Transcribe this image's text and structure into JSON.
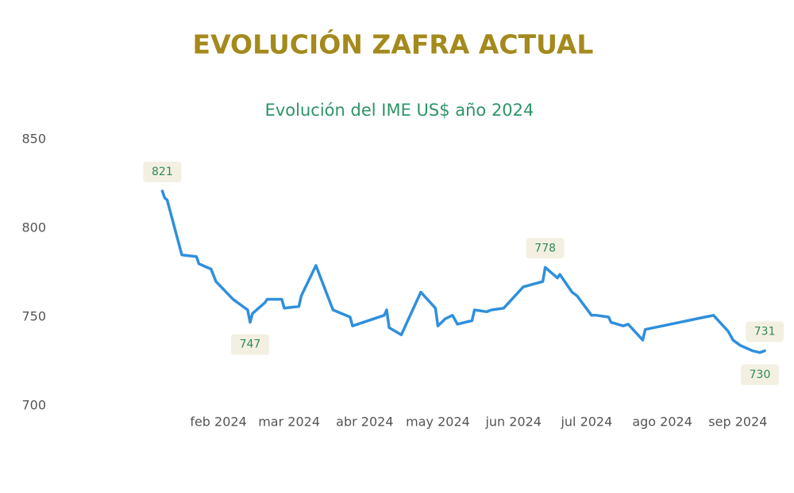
{
  "chart_data": {
    "type": "line",
    "title": "EVOLUCIÓN ZAFRA ACTUAL",
    "subtitle": "Evolución del IME US$ año 2024",
    "x": [
      9,
      10,
      11,
      17,
      23,
      24,
      29,
      31,
      38,
      44,
      45,
      46,
      51,
      52,
      58,
      59,
      65,
      66,
      72,
      79,
      86,
      87,
      100,
      101,
      102,
      107,
      115,
      121,
      122,
      125,
      128,
      130,
      136,
      137,
      142,
      144,
      149,
      157,
      165,
      166,
      171,
      172,
      177,
      179,
      185,
      187,
      192,
      193,
      198,
      200,
      206,
      207,
      235,
      241,
      243,
      246,
      251,
      254,
      256
    ],
    "series": [
      {
        "name": "IME US$",
        "color": "#2f8fdd",
        "values": [
          821,
          817,
          816,
          785,
          784,
          780,
          777,
          770,
          760,
          754,
          747,
          752,
          758,
          760,
          760,
          755,
          756,
          762,
          779,
          754,
          750,
          745,
          751,
          754,
          744,
          740,
          764,
          755,
          745,
          749,
          751,
          746,
          748,
          754,
          753,
          754,
          755,
          767,
          770,
          778,
          772,
          774,
          764,
          762,
          751,
          751,
          750,
          747,
          745,
          746,
          737,
          743,
          751,
          742,
          737,
          734,
          731,
          730,
          731
        ],
        "value_labels": [
          "821",
          null,
          null,
          null,
          null,
          null,
          null,
          null,
          null,
          null,
          "747",
          null,
          null,
          null,
          null,
          null,
          null,
          null,
          null,
          null,
          null,
          null,
          null,
          null,
          null,
          null,
          null,
          null,
          null,
          null,
          null,
          null,
          null,
          null,
          null,
          null,
          null,
          null,
          null,
          "778",
          null,
          null,
          null,
          null,
          null,
          null,
          null,
          null,
          null,
          null,
          null,
          null,
          null,
          null,
          null,
          null,
          null,
          "730",
          "731"
        ]
      }
    ],
    "xlim": [
      -38,
      268
    ],
    "xticks": [
      {
        "value": 32,
        "label": "feb 2024"
      },
      {
        "value": 61,
        "label": "mar 2024"
      },
      {
        "value": 92,
        "label": "abr 2024"
      },
      {
        "value": 122,
        "label": "may 2024"
      },
      {
        "value": 153,
        "label": "jun 2024"
      },
      {
        "value": 183,
        "label": "jul 2024"
      },
      {
        "value": 214,
        "label": "ago 2024"
      },
      {
        "value": 245,
        "label": "sep 2024"
      }
    ],
    "ylim": [
      700,
      850
    ],
    "yticks": [
      700,
      750,
      800,
      850
    ],
    "grid": false
  }
}
